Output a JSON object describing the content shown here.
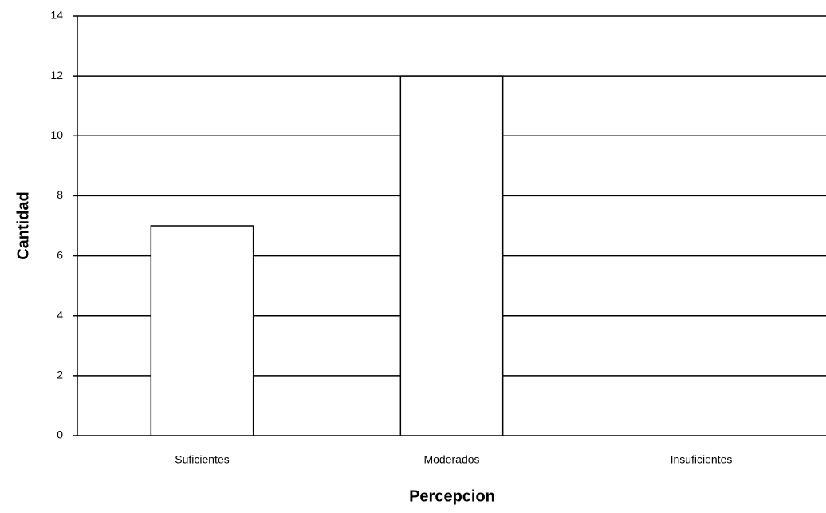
{
  "chart_data": {
    "type": "bar",
    "x_label": "Percepcion",
    "y_label": "Cantidad",
    "categories": [
      "Suficientes",
      "Moderados",
      "Insuficientes"
    ],
    "values": [
      7,
      12,
      0
    ],
    "color": "#ffffff",
    "ylim": [
      0,
      14
    ],
    "yticks": [
      0,
      2,
      4,
      6,
      8,
      10,
      12,
      14
    ],
    "grid": true
  }
}
